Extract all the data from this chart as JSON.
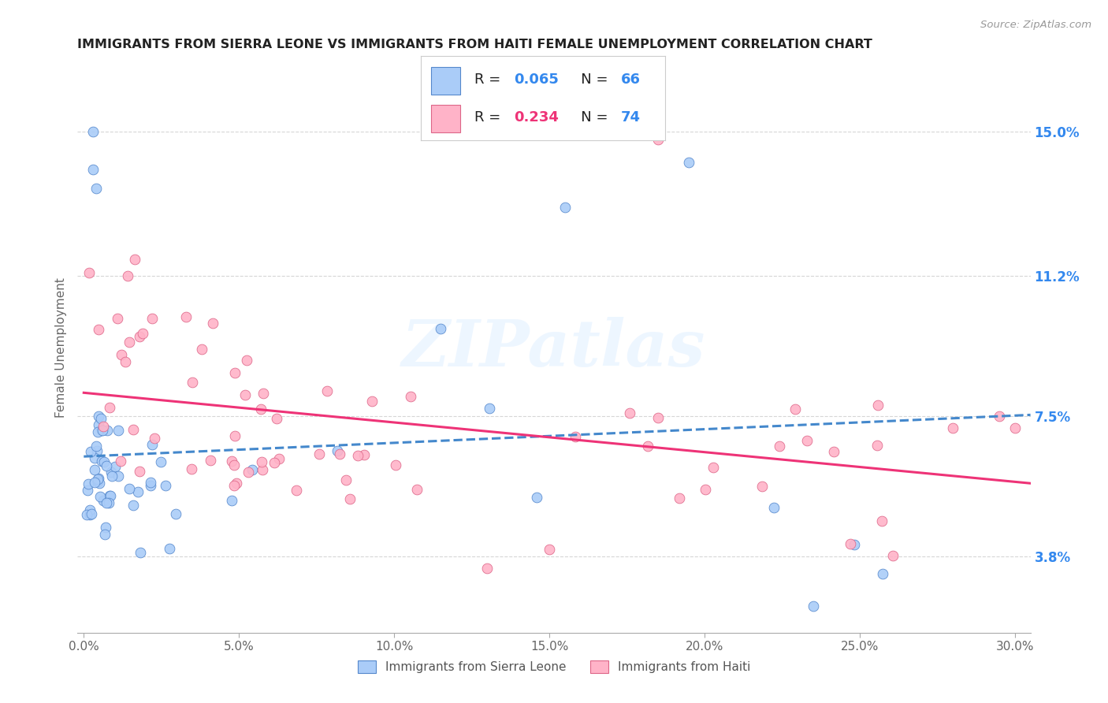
{
  "title": "IMMIGRANTS FROM SIERRA LEONE VS IMMIGRANTS FROM HAITI FEMALE UNEMPLOYMENT CORRELATION CHART",
  "source": "Source: ZipAtlas.com",
  "ylabel": "Female Unemployment",
  "x_ticks": [
    "0.0%",
    "5.0%",
    "10.0%",
    "15.0%",
    "20.0%",
    "25.0%",
    "30.0%"
  ],
  "x_tick_vals": [
    0.0,
    0.05,
    0.1,
    0.15,
    0.2,
    0.25,
    0.3
  ],
  "y_tick_labels": [
    "3.8%",
    "7.5%",
    "11.2%",
    "15.0%"
  ],
  "y_tick_vals": [
    0.038,
    0.075,
    0.112,
    0.15
  ],
  "xlim": [
    -0.002,
    0.305
  ],
  "ylim": [
    0.018,
    0.168
  ],
  "legend_label_1": "Immigrants from Sierra Leone",
  "legend_label_2": "Immigrants from Haiti",
  "R1": "0.065",
  "N1": "66",
  "R2": "0.234",
  "N2": "74",
  "color_sl": "#aaccf8",
  "color_ht": "#ffb3c8",
  "edge_color_sl": "#5588cc",
  "edge_color_ht": "#dd6688",
  "line_color_sl": "#4488cc",
  "line_color_ht": "#ee3377",
  "watermark": "ZIPatlas"
}
